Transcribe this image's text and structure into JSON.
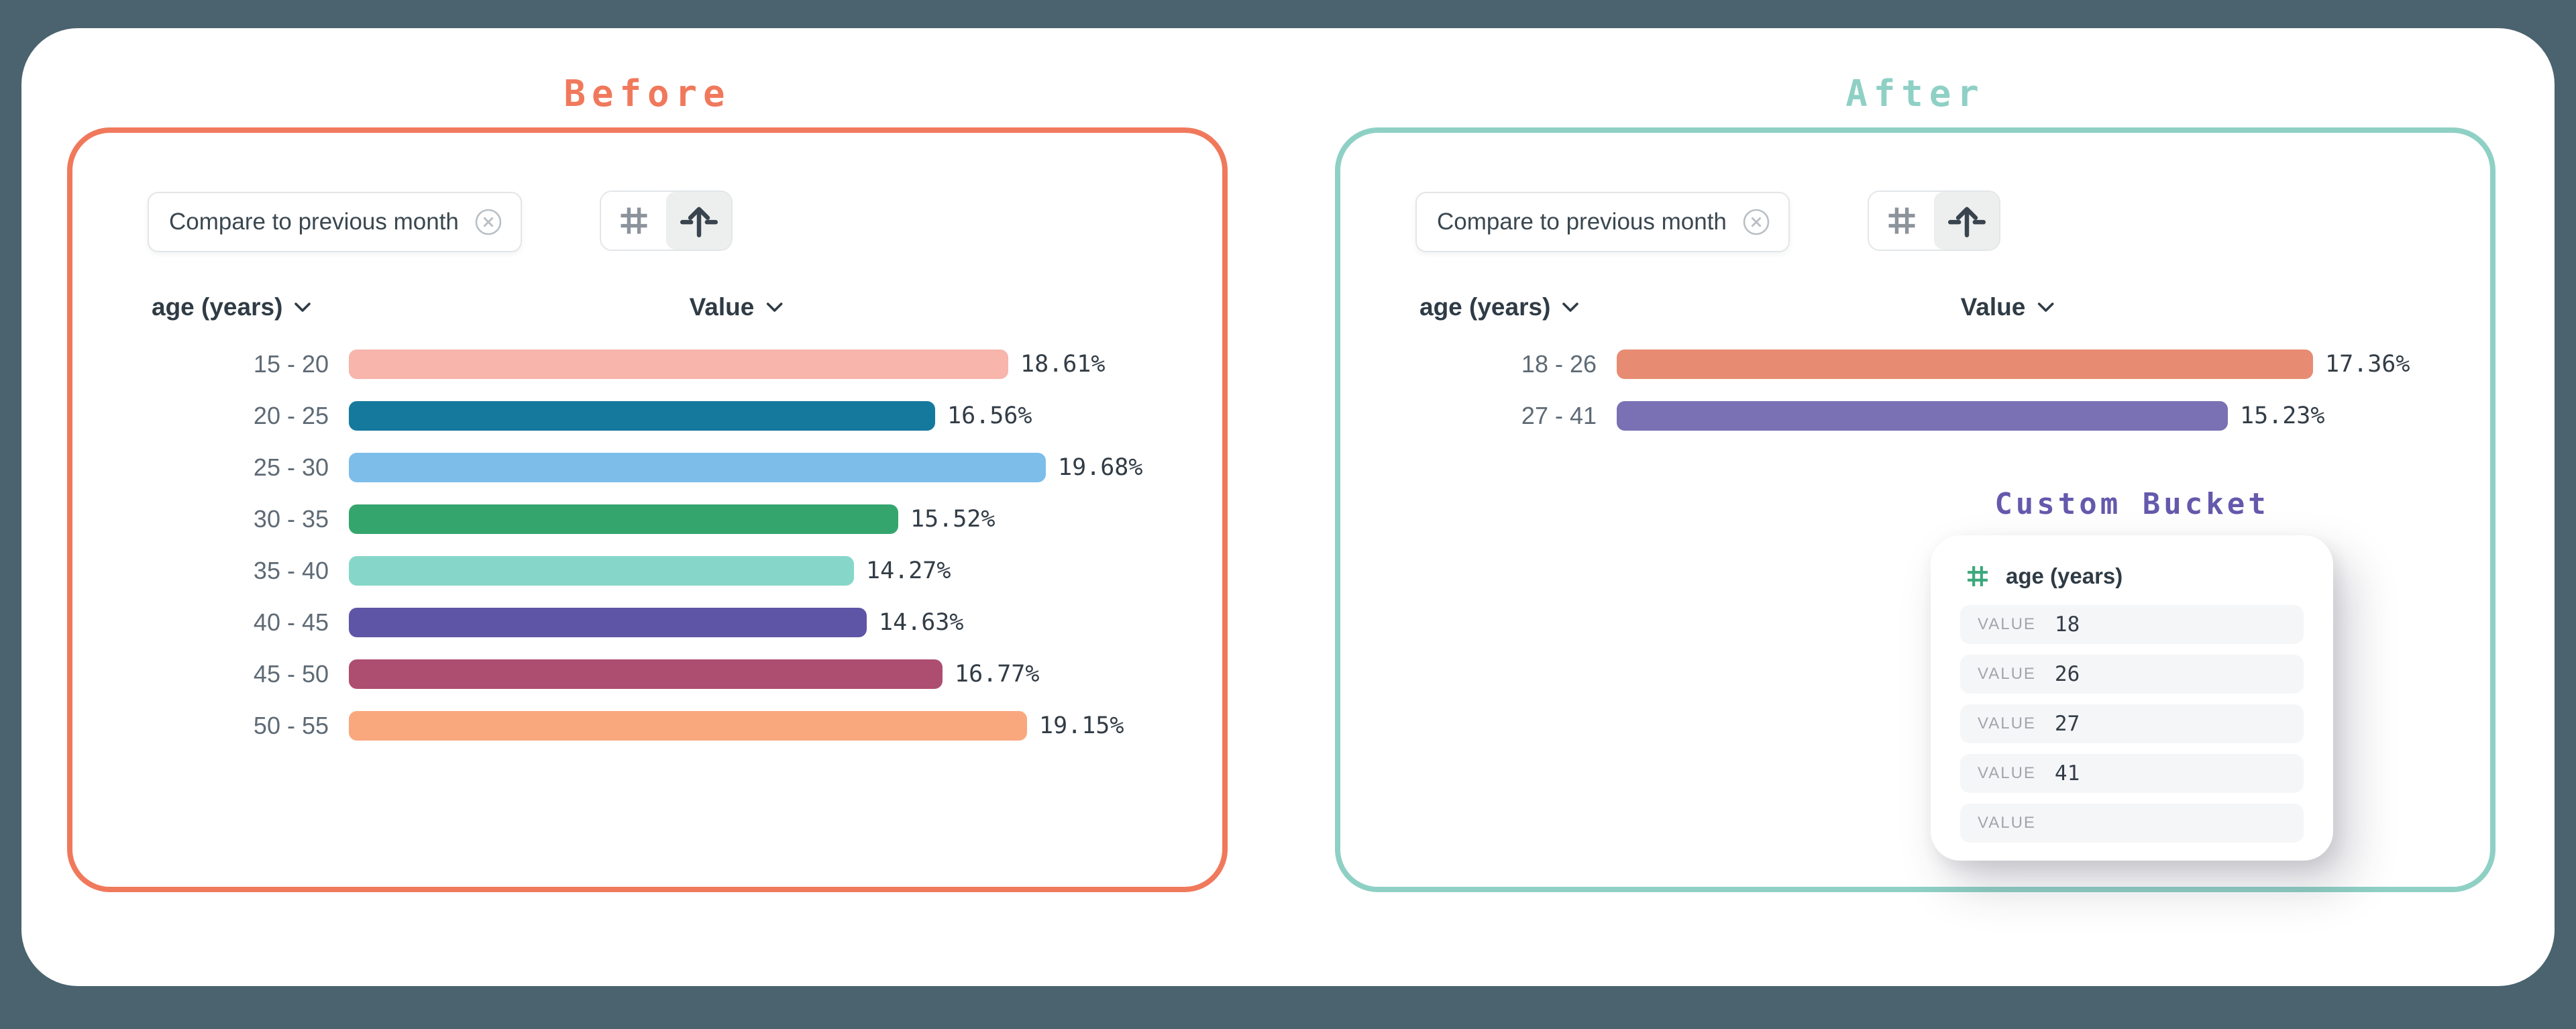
{
  "page": {
    "background_color": "#4B636E",
    "card_color": "#FFFFFF"
  },
  "before": {
    "title": "Before",
    "accent": "#F0795C",
    "filter_chip": {
      "label": "Compare to previous month"
    },
    "table": {
      "dimension_header": "age (years)",
      "value_header": "Value",
      "rows": [
        {
          "label": "15 - 20",
          "value": 18.61,
          "display": "18.61%",
          "color": "#F7B5AC"
        },
        {
          "label": "20 - 25",
          "value": 16.56,
          "display": "16.56%",
          "color": "#15799E"
        },
        {
          "label": "25 - 30",
          "value": 19.68,
          "display": "19.68%",
          "color": "#7DBDE9"
        },
        {
          "label": "30 - 35",
          "value": 15.52,
          "display": "15.52%",
          "color": "#35A56E"
        },
        {
          "label": "35 - 40",
          "value": 14.27,
          "display": "14.27%",
          "color": "#86D7C9"
        },
        {
          "label": "40 - 45",
          "value": 14.63,
          "display": "14.63%",
          "color": "#5E55A6"
        },
        {
          "label": "45 - 50",
          "value": 16.77,
          "display": "16.77%",
          "color": "#AD4E71"
        },
        {
          "label": "50 - 55",
          "value": 19.15,
          "display": "19.15%",
          "color": "#F9A87E"
        }
      ]
    }
  },
  "after": {
    "title": "After",
    "accent": "#8FD0C5",
    "filter_chip": {
      "label": "Compare to previous month"
    },
    "table": {
      "dimension_header": "age (years)",
      "value_header": "Value",
      "rows": [
        {
          "label": "18 - 26",
          "value": 17.36,
          "display": "17.36%",
          "color": "#E78C73"
        },
        {
          "label": "27 - 41",
          "value": 15.23,
          "display": "15.23%",
          "color": "#7A70B4"
        }
      ]
    },
    "custom_bucket": {
      "title": "Custom Bucket",
      "accent": "#6459AC",
      "field": "age (years)",
      "field_icon_color": "#3CA87B",
      "rows": [
        {
          "label": "VALUE",
          "value": "18"
        },
        {
          "label": "VALUE",
          "value": "26"
        },
        {
          "label": "VALUE",
          "value": "27"
        },
        {
          "label": "VALUE",
          "value": "41"
        },
        {
          "label": "VALUE",
          "value": ""
        }
      ]
    }
  },
  "chart_data": [
    {
      "type": "bar",
      "title": "Before",
      "orientation": "horizontal",
      "categories": [
        "15 - 20",
        "20 - 25",
        "25 - 30",
        "30 - 35",
        "35 - 40",
        "40 - 45",
        "45 - 50",
        "50 - 55"
      ],
      "values": [
        18.61,
        16.56,
        19.68,
        15.52,
        14.27,
        14.63,
        16.77,
        19.15
      ],
      "value_labels": [
        "18.61%",
        "16.56%",
        "19.68%",
        "15.52%",
        "14.27%",
        "14.63%",
        "16.77%",
        "19.15%"
      ],
      "xlabel": "Value",
      "ylabel": "age (years)",
      "xlim": [
        0,
        20
      ],
      "grid": false,
      "legend": false
    },
    {
      "type": "bar",
      "title": "After",
      "orientation": "horizontal",
      "categories": [
        "18 - 26",
        "27 - 41"
      ],
      "values": [
        17.36,
        15.23
      ],
      "value_labels": [
        "17.36%",
        "15.23%"
      ],
      "xlabel": "Value",
      "ylabel": "age (years)",
      "xlim": [
        0,
        20
      ],
      "grid": false,
      "legend": false
    }
  ]
}
